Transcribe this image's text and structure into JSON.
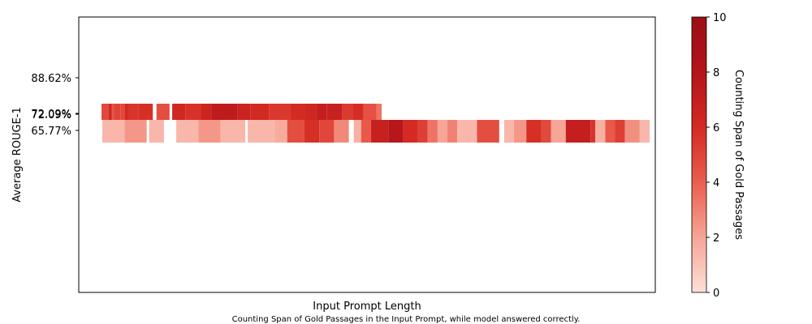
{
  "chart_data": {
    "type": "heatmap",
    "title": "",
    "xlabel": "Input Prompt Length",
    "ylabel": "Average ROUGE-1",
    "caption": "Counting Span of Gold Passages in the Input Prompt, while model answered correctly.",
    "x_ticks": [],
    "y_ticks": [
      "88.62%",
      "72.09%",
      "72.09%",
      "65.77%"
    ],
    "grid": false,
    "colorbar": {
      "label": "Counting Span of Gold Passages",
      "range": [
        0,
        10
      ],
      "ticks": [
        "0",
        "2",
        "4",
        "6",
        "8",
        "10"
      ],
      "colors": [
        "#fde0d7",
        "#f6a596",
        "#ea5e4e",
        "#d42a22",
        "#b4141a",
        "#9b0d14"
      ]
    },
    "rows": [
      {
        "label": "72.09%",
        "segments": [
          {
            "x": [
              0.0,
              0.14
            ],
            "value": 4.8
          },
          {
            "x": [
              0.14,
              0.2
            ],
            "value": 6.2
          },
          {
            "x": [
              0.2,
              0.24
            ],
            "value": 4.2
          },
          {
            "x": [
              0.24,
              0.36
            ],
            "value": 5.0
          },
          {
            "x": [
              0.36,
              0.44
            ],
            "value": 4.8
          },
          {
            "x": [
              0.44,
              0.52
            ],
            "value": 6.0
          },
          {
            "x": [
              0.52,
              0.7
            ],
            "value": 5.6
          },
          {
            "x": [
              0.7,
              0.98
            ],
            "value": 5.8
          },
          {
            "x": [
              1.05,
              1.3
            ],
            "value": 4.6
          },
          {
            "x": [
              1.35,
              1.6
            ],
            "value": 6.3
          },
          {
            "x": [
              1.6,
              1.9
            ],
            "value": 5.7
          },
          {
            "x": [
              1.9,
              2.1
            ],
            "value": 6.5
          },
          {
            "x": [
              2.1,
              2.6
            ],
            "value": 7.4
          },
          {
            "x": [
              2.6,
              2.85
            ],
            "value": 6.6
          },
          {
            "x": [
              2.85,
              3.2
            ],
            "value": 6.1
          },
          {
            "x": [
              3.2,
              3.6
            ],
            "value": 5.5
          },
          {
            "x": [
              3.6,
              3.9
            ],
            "value": 6.0
          },
          {
            "x": [
              3.9,
              4.1
            ],
            "value": 6.4
          },
          {
            "x": [
              4.1,
              4.3
            ],
            "value": 7.0
          },
          {
            "x": [
              4.3,
              4.6
            ],
            "value": 6.8
          },
          {
            "x": [
              4.6,
              4.8
            ],
            "value": 5.4
          },
          {
            "x": [
              4.8,
              5.0
            ],
            "value": 5.9
          },
          {
            "x": [
              5.0,
              5.25
            ],
            "value": 4.5
          },
          {
            "x": [
              5.25,
              5.35
            ],
            "value": 3.4
          }
        ]
      },
      {
        "label": "65.77%",
        "segments": [
          {
            "x": [
              0.0,
              0.45
            ],
            "value": 1.4
          },
          {
            "x": [
              0.45,
              0.9
            ],
            "value": 2.4
          },
          {
            "x": [
              0.95,
              1.25
            ],
            "value": 1.4
          },
          {
            "x": [
              1.5,
              1.95
            ],
            "value": 1.4
          },
          {
            "x": [
              1.95,
              2.4
            ],
            "value": 2.4
          },
          {
            "x": [
              2.4,
              2.9
            ],
            "value": 1.4
          },
          {
            "x": [
              2.95,
              3.5
            ],
            "value": 1.4
          },
          {
            "x": [
              3.5,
              3.75
            ],
            "value": 1.8
          },
          {
            "x": [
              3.75,
              4.1
            ],
            "value": 4.6
          },
          {
            "x": [
              4.1,
              4.4
            ],
            "value": 5.8
          },
          {
            "x": [
              4.4,
              4.7
            ],
            "value": 4.9
          },
          {
            "x": [
              4.7,
              5.0
            ],
            "value": 2.8
          },
          {
            "x": [
              5.1,
              5.25
            ],
            "value": 1.6
          },
          {
            "x": [
              5.25,
              5.45
            ],
            "value": 4.2
          },
          {
            "x": [
              5.45,
              5.8
            ],
            "value": 6.8
          },
          {
            "x": [
              5.8,
              6.1
            ],
            "value": 7.8
          },
          {
            "x": [
              6.1,
              6.4
            ],
            "value": 6.0
          },
          {
            "x": [
              6.4,
              6.6
            ],
            "value": 5.2
          },
          {
            "x": [
              6.6,
              6.8
            ],
            "value": 3.4
          },
          {
            "x": [
              6.8,
              7.0
            ],
            "value": 2.0
          },
          {
            "x": [
              7.0,
              7.2
            ],
            "value": 3.0
          },
          {
            "x": [
              7.2,
              7.6
            ],
            "value": 1.4
          },
          {
            "x": [
              7.6,
              8.05
            ],
            "value": 4.6
          },
          {
            "x": [
              8.15,
              8.35
            ],
            "value": 1.4
          },
          {
            "x": [
              8.35,
              8.6
            ],
            "value": 2.4
          },
          {
            "x": [
              8.6,
              8.9
            ],
            "value": 5.8
          },
          {
            "x": [
              8.9,
              9.1
            ],
            "value": 4.8
          },
          {
            "x": [
              9.1,
              9.4
            ],
            "value": 2.0
          },
          {
            "x": [
              9.4,
              9.9
            ],
            "value": 7.0
          },
          {
            "x": [
              9.9,
              10.0
            ],
            "value": 5.6
          },
          {
            "x": [
              10.0,
              10.2
            ],
            "value": 1.6
          },
          {
            "x": [
              10.2,
              10.4
            ],
            "value": 4.2
          },
          {
            "x": [
              10.4,
              10.6
            ],
            "value": 5.2
          },
          {
            "x": [
              10.6,
              10.9
            ],
            "value": 2.6
          },
          {
            "x": [
              10.9,
              11.1
            ],
            "value": 1.4
          }
        ]
      }
    ]
  }
}
